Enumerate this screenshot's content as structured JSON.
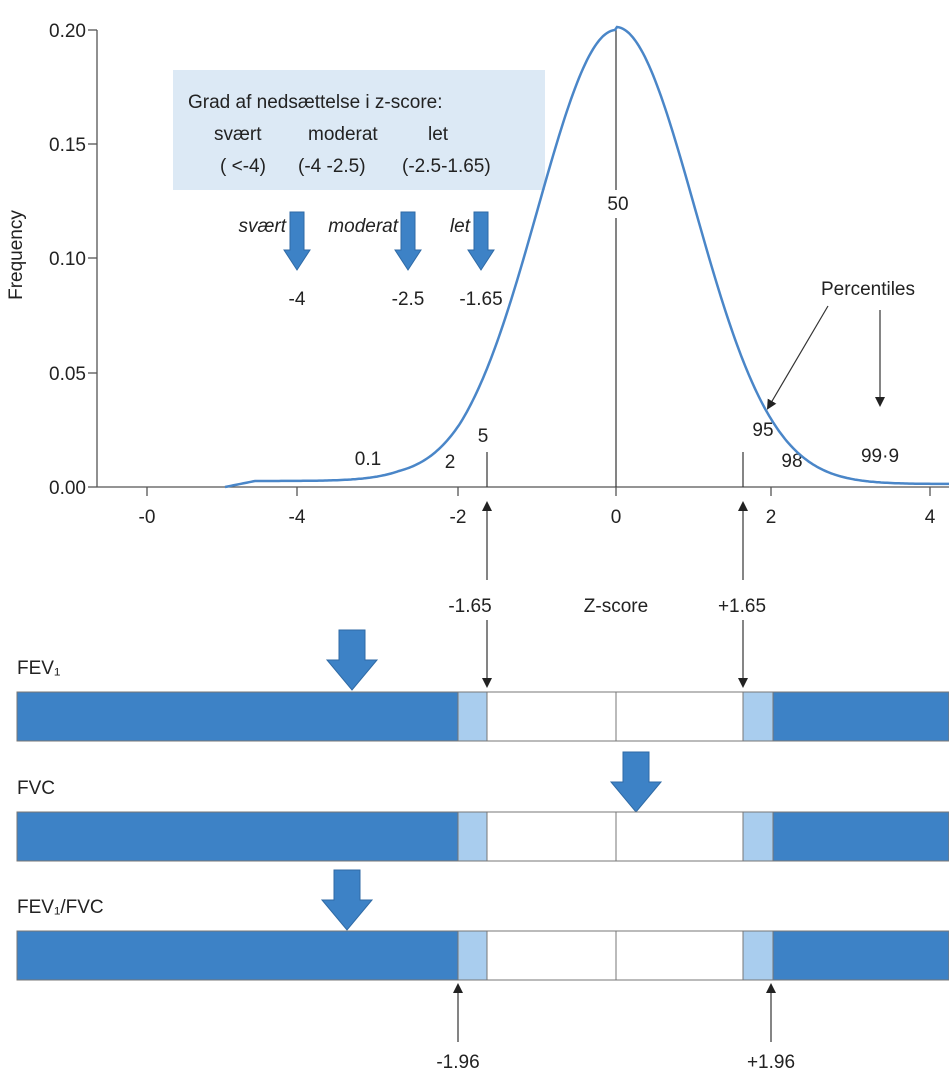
{
  "axis": {
    "y_label": "Frequency",
    "y_ticks": [
      "0.20",
      "0.15",
      "0.10",
      "0.05",
      "0.00"
    ],
    "x_ticks": [
      "-0",
      "-4",
      "-2",
      "0",
      "2",
      "4"
    ],
    "x_label": "Z-score"
  },
  "legend_box": {
    "title": "Grad af nedsættelse i z-score:",
    "headers": [
      "svært",
      "moderat",
      "let"
    ],
    "ranges": [
      "( <-4)",
      "(-4 -2.5)",
      "(-2.5-1.65)"
    ]
  },
  "severity_arrows": [
    {
      "label": "svært",
      "value": "-4"
    },
    {
      "label": "moderat",
      "value": "-2.5"
    },
    {
      "label": "let",
      "value": "-1.65"
    }
  ],
  "percentiles": {
    "title": "Percentiles",
    "labels": [
      "0.1",
      "2",
      "5",
      "50",
      "95",
      "98",
      "99·9"
    ]
  },
  "cutoffs": {
    "upper": [
      "-1.65",
      "+1.65"
    ],
    "lower": [
      "-1.96",
      "+1.96"
    ]
  },
  "bars": [
    {
      "label": "FEV₁"
    },
    {
      "label": "FVC"
    },
    {
      "label": "FEV₁/FVC"
    }
  ]
}
